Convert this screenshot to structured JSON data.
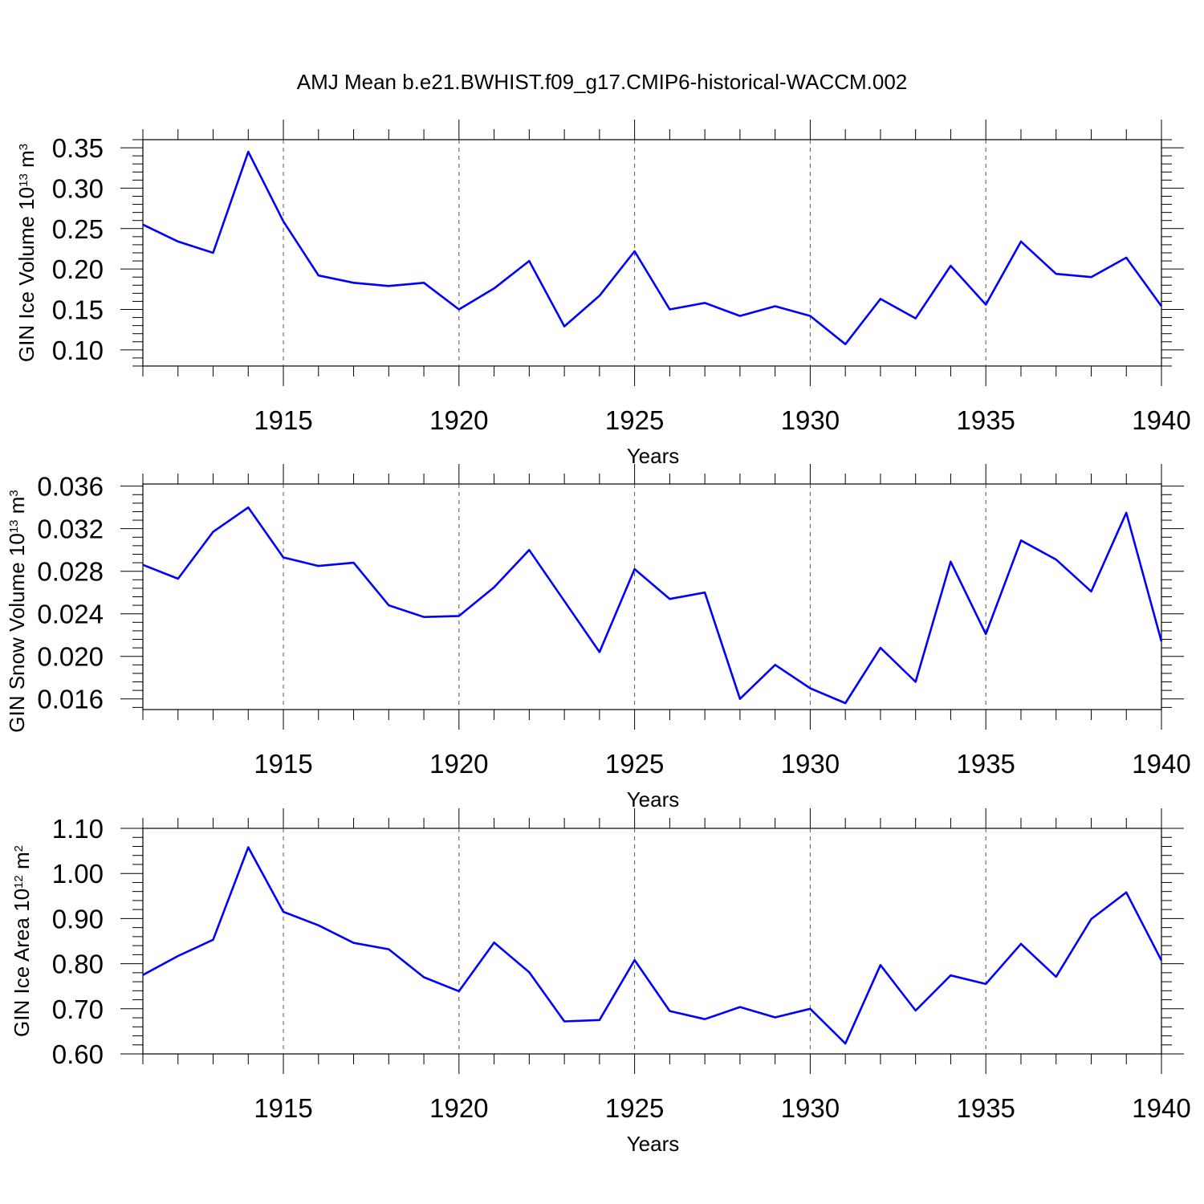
{
  "chart_data": {
    "title": "AMJ Mean b.e21.BWHIST.f09_g17.CMIP6-historical-WACCM.002",
    "line_color": "#0000ff",
    "panels": [
      {
        "type": "line",
        "xlabel": "Years",
        "ylabel": {
          "main": "GIN Ice Volume 10",
          "exp": "13",
          "unit": " m",
          "unit_exp": "3"
        },
        "xlim": [
          1911,
          1940
        ],
        "ylim": [
          0.08,
          0.36
        ],
        "x_ticks": [
          "1915",
          "1920",
          "1925",
          "1930",
          "1935",
          "1940"
        ],
        "y_ticks": [
          "0.10",
          "0.15",
          "0.20",
          "0.25",
          "0.30",
          "0.35"
        ],
        "x": [
          1911,
          1912,
          1913,
          1914,
          1915,
          1916,
          1917,
          1918,
          1919,
          1920,
          1921,
          1922,
          1923,
          1924,
          1925,
          1926,
          1927,
          1928,
          1929,
          1930,
          1931,
          1932,
          1933,
          1934,
          1935,
          1936,
          1937,
          1938,
          1939,
          1940
        ],
        "values": [
          0.255,
          0.234,
          0.22,
          0.345,
          0.259,
          0.192,
          0.183,
          0.179,
          0.183,
          0.15,
          0.176,
          0.21,
          0.129,
          0.167,
          0.222,
          0.15,
          0.158,
          0.142,
          0.154,
          0.142,
          0.107,
          0.163,
          0.139,
          0.204,
          0.156,
          0.234,
          0.194,
          0.19,
          0.214,
          0.154
        ],
        "grid": "dashed vertical at major x ticks"
      },
      {
        "type": "line",
        "xlabel": "Years",
        "ylabel": {
          "main": "GIN Snow Volume 10",
          "exp": "13",
          "unit": " m",
          "unit_exp": "3"
        },
        "xlim": [
          1911,
          1940
        ],
        "ylim": [
          0.015,
          0.0362
        ],
        "x_ticks": [
          "1915",
          "1920",
          "1925",
          "1930",
          "1935",
          "1940"
        ],
        "y_ticks": [
          "0.016",
          "0.020",
          "0.024",
          "0.028",
          "0.032",
          "0.036"
        ],
        "x": [
          1911,
          1912,
          1913,
          1914,
          1915,
          1916,
          1917,
          1918,
          1919,
          1920,
          1921,
          1922,
          1923,
          1924,
          1925,
          1926,
          1927,
          1928,
          1929,
          1930,
          1931,
          1932,
          1933,
          1934,
          1935,
          1936,
          1937,
          1938,
          1939,
          1940
        ],
        "values": [
          0.0286,
          0.0273,
          0.0317,
          0.034,
          0.0293,
          0.0285,
          0.0288,
          0.0248,
          0.0237,
          0.0238,
          0.0265,
          0.03,
          0.0252,
          0.0204,
          0.0282,
          0.0254,
          0.026,
          0.016,
          0.0192,
          0.017,
          0.0156,
          0.0208,
          0.0176,
          0.0289,
          0.0221,
          0.0309,
          0.0291,
          0.0261,
          0.0335,
          0.0214
        ],
        "grid": "dashed vertical at major x ticks"
      },
      {
        "type": "line",
        "xlabel": "Years",
        "ylabel": {
          "main": "GIN Ice Area 10",
          "exp": "12",
          "unit": " m",
          "unit_exp": "2"
        },
        "xlim": [
          1911,
          1940
        ],
        "ylim": [
          0.6,
          1.1
        ],
        "x_ticks": [
          "1915",
          "1920",
          "1925",
          "1930",
          "1935",
          "1940"
        ],
        "y_ticks": [
          "0.60",
          "0.70",
          "0.80",
          "0.90",
          "1.00",
          "1.10"
        ],
        "x": [
          1911,
          1912,
          1913,
          1914,
          1915,
          1916,
          1917,
          1918,
          1919,
          1920,
          1921,
          1922,
          1923,
          1924,
          1925,
          1926,
          1927,
          1928,
          1929,
          1930,
          1931,
          1932,
          1933,
          1934,
          1935,
          1936,
          1937,
          1938,
          1939,
          1940
        ],
        "values": [
          0.775,
          0.817,
          0.853,
          1.058,
          0.915,
          0.885,
          0.846,
          0.832,
          0.77,
          0.739,
          0.847,
          0.781,
          0.672,
          0.675,
          0.808,
          0.695,
          0.677,
          0.704,
          0.681,
          0.7,
          0.623,
          0.797,
          0.696,
          0.774,
          0.755,
          0.844,
          0.771,
          0.899,
          0.958,
          0.807
        ],
        "grid": "dashed vertical at major x ticks"
      }
    ]
  }
}
